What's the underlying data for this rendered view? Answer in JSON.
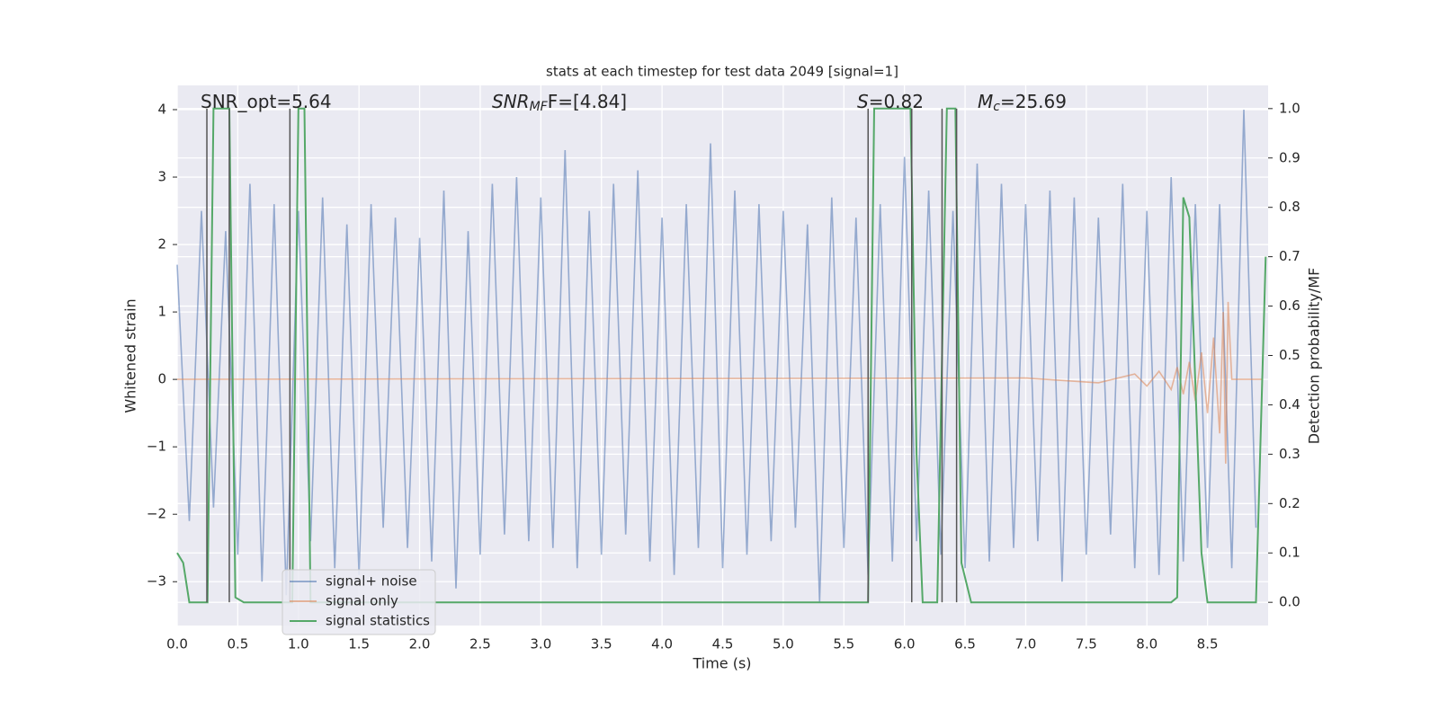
{
  "chart_data": {
    "type": "line",
    "title": "stats at each timestep for test data 2049 [signal=1]",
    "x_label": "Time (s)",
    "y_label": "Whitened strain",
    "y2_label": "Detection probability/MF",
    "annotations": [
      {
        "base": "SNR_opt=5.64"
      },
      {
        "base": "SNR",
        "sub": "MF",
        "tail": "F=[4.84]"
      },
      {
        "base": "S",
        "tail": "=0.82"
      },
      {
        "base": "M",
        "sub": "c",
        "tail": "=25.69"
      }
    ],
    "xlim": [
      0,
      9.0
    ],
    "xticks": [
      {
        "value": 0,
        "label": "0.0"
      },
      0.5,
      {
        "value": 1,
        "label": "1.0"
      },
      1.5,
      {
        "value": 2,
        "label": "2.0"
      },
      2.5,
      {
        "value": 3,
        "label": "3.0"
      },
      3.5,
      {
        "value": 4,
        "label": "4.0"
      },
      4.5,
      {
        "value": 5,
        "label": "5.0"
      },
      5.5,
      {
        "value": 6,
        "label": "6.0"
      },
      6.5,
      {
        "value": 7,
        "label": "7.0"
      },
      7.5,
      {
        "value": 8,
        "label": "8.0"
      },
      8.5
    ],
    "ylim": [
      -3.65,
      4.36
    ],
    "yticks": [
      {
        "value": -3,
        "label": "−3"
      },
      {
        "value": -2,
        "label": "−2"
      },
      {
        "value": -1,
        "label": "−1"
      },
      0,
      1,
      2,
      3,
      4
    ],
    "y2lim": [
      -0.047,
      1.047
    ],
    "y2ticks": [
      {
        "value": 0,
        "label": "0.0"
      },
      0.1,
      0.2,
      0.3,
      0.4,
      0.5,
      0.6,
      0.7,
      0.8,
      0.9,
      {
        "value": 1,
        "label": "1.0"
      }
    ],
    "grid": true,
    "legend": "lower left",
    "vlines": [
      0.245,
      0.43,
      0.93,
      5.7,
      6.06,
      6.31,
      6.43
    ],
    "vline_color": "#555555",
    "series": [
      {
        "name": "signal+ noise",
        "color": "#4c72b0",
        "axis": "y",
        "x": [
          0.0,
          0.1,
          0.2,
          0.3,
          0.4,
          0.5,
          0.6,
          0.7,
          0.8,
          0.9,
          1.0,
          1.1,
          1.2,
          1.3,
          1.4,
          1.5,
          1.6,
          1.7,
          1.8,
          1.9,
          2.0,
          2.1,
          2.2,
          2.3,
          2.4,
          2.5,
          2.6,
          2.7,
          2.8,
          2.9,
          3.0,
          3.1,
          3.2,
          3.3,
          3.4,
          3.5,
          3.6,
          3.7,
          3.8,
          3.9,
          4.0,
          4.1,
          4.2,
          4.3,
          4.4,
          4.5,
          4.6,
          4.7,
          4.8,
          4.9,
          5.0,
          5.1,
          5.2,
          5.3,
          5.4,
          5.5,
          5.6,
          5.7,
          5.8,
          5.9,
          6.0,
          6.1,
          6.2,
          6.3,
          6.4,
          6.5,
          6.6,
          6.7,
          6.8,
          6.9,
          7.0,
          7.1,
          7.2,
          7.3,
          7.4,
          7.5,
          7.6,
          7.7,
          7.8,
          7.9,
          8.0,
          8.1,
          8.2,
          8.3,
          8.4,
          8.5,
          8.6,
          8.7,
          8.8,
          8.9
        ],
        "values": [
          1.7,
          -2.1,
          2.5,
          -1.9,
          2.2,
          -2.6,
          2.9,
          -3.0,
          2.6,
          -3.2,
          2.5,
          -2.4,
          2.7,
          -2.8,
          2.3,
          -2.9,
          2.6,
          -2.2,
          2.4,
          -2.5,
          2.1,
          -2.7,
          2.8,
          -3.1,
          2.2,
          -2.6,
          2.9,
          -2.3,
          3.0,
          -2.4,
          2.7,
          -2.5,
          3.4,
          -2.8,
          2.5,
          -2.6,
          2.9,
          -2.3,
          3.1,
          -2.7,
          2.4,
          -2.9,
          2.6,
          -2.5,
          3.5,
          -2.8,
          2.8,
          -2.6,
          2.6,
          -2.4,
          2.5,
          -2.2,
          2.3,
          -3.3,
          2.7,
          -2.5,
          2.4,
          -2.9,
          2.6,
          -2.7,
          3.3,
          -2.4,
          2.8,
          -2.6,
          2.5,
          -2.8,
          3.2,
          -2.7,
          2.9,
          -2.5,
          2.6,
          -2.4,
          2.8,
          -3.0,
          2.7,
          -2.6,
          2.4,
          -2.3,
          2.9,
          -2.8,
          2.5,
          -2.9,
          3.0,
          -2.7,
          2.6,
          -2.5,
          2.6,
          -2.8,
          4.0,
          -2.2
        ]
      },
      {
        "name": "signal only",
        "color": "#dd8452",
        "axis": "y",
        "x": [
          0.0,
          7.0,
          7.6,
          7.9,
          8.0,
          8.1,
          8.2,
          8.25,
          8.3,
          8.35,
          8.4,
          8.45,
          8.5,
          8.55,
          8.6,
          8.63,
          8.65,
          8.67,
          8.7,
          8.95
        ],
        "values": [
          0,
          0.02,
          -0.05,
          0.08,
          -0.1,
          0.12,
          -0.15,
          0.18,
          -0.22,
          0.26,
          -0.32,
          0.4,
          -0.5,
          0.62,
          -0.8,
          1.0,
          -1.25,
          1.15,
          0,
          0
        ]
      },
      {
        "name": "signal statistics",
        "color": "#55a868",
        "axis": "y2",
        "x": [
          0.0,
          0.05,
          0.1,
          0.25,
          0.3,
          0.43,
          0.48,
          0.55,
          0.6,
          0.7,
          0.95,
          1.0,
          1.05,
          1.1,
          4.7,
          5.7,
          5.75,
          6.05,
          6.1,
          6.15,
          6.22,
          6.27,
          6.35,
          6.42,
          6.47,
          6.55,
          7.35,
          7.45,
          8.2,
          8.25,
          8.3,
          8.35,
          8.45,
          8.5,
          8.9,
          8.98
        ],
        "values": [
          0.1,
          0.08,
          0.0,
          0.0,
          1.0,
          1.0,
          0.01,
          0.0,
          0.0,
          0.0,
          0.0,
          1.0,
          1.0,
          0.0,
          0.0,
          0.0,
          1.0,
          1.0,
          0.3,
          0.0,
          0.0,
          0.0,
          1.0,
          1.0,
          0.08,
          0.0,
          0.0,
          0.0,
          0.0,
          0.01,
          0.82,
          0.78,
          0.1,
          0.0,
          0.0,
          0.7
        ]
      }
    ]
  }
}
